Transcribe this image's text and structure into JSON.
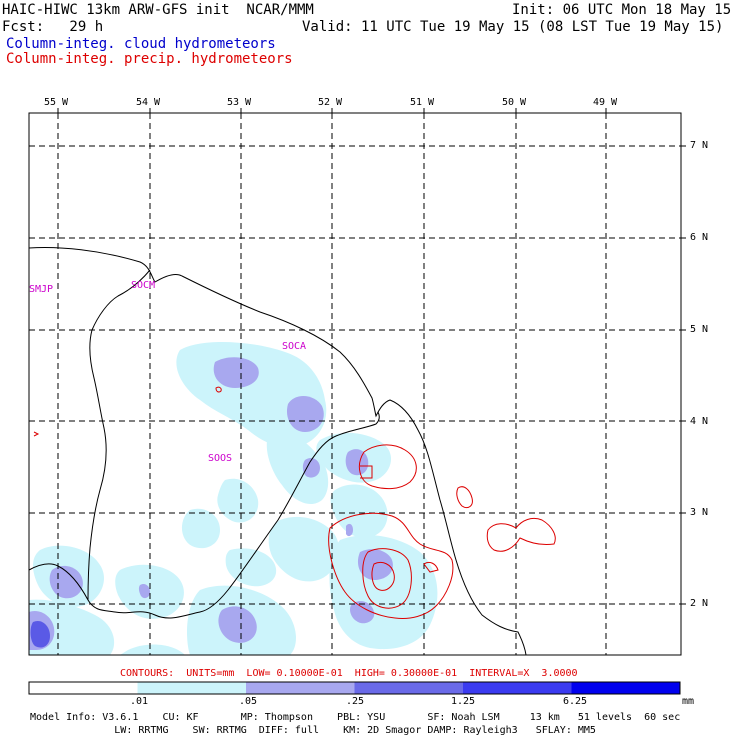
{
  "header": {
    "line1_left": "HAIC-HIWC 13km ARW-GFS init  NCAR/MMM",
    "line1_right": "Init: 06 UTC Mon 18 May 15",
    "line2_left": "Fcst:   29 h",
    "line2_right": "Valid: 11 UTC Tue 19 May 15 (08 LST Tue 19 May 15)",
    "field_cloud": "Column-integ. cloud hydrometeors",
    "field_precip": "Column-integ. precip. hydrometeors",
    "cloud_color": "#0000cc",
    "precip_color": "#dd0000"
  },
  "map": {
    "lon_labels": [
      "55 W",
      "54 W",
      "53 W",
      "52 W",
      "51 W",
      "50 W",
      "49 W"
    ],
    "lat_labels": [
      "7 N",
      "6 N",
      "5 N",
      "4 N",
      "3 N",
      "2 N"
    ],
    "stations": [
      {
        "id": "SMJP"
      },
      {
        "id": "SOCM"
      },
      {
        "id": "SOCA"
      },
      {
        "id": "SOOS"
      }
    ],
    "station_color": "#cc00cc"
  },
  "contour_info": "CONTOURS:  UNITS=mm  LOW= 0.10000E-01  HIGH= 0.30000E-01  INTERVAL=X  3.0000",
  "colorbar": {
    "ticks": [
      ".01",
      ".05",
      ".25",
      "1.25",
      "6.25"
    ],
    "units": "mm",
    "colors": [
      "#ffffff",
      "#ccf4fb",
      "#a8a8ef",
      "#6a6ae8",
      "#3b3bf0",
      "#0000ee"
    ]
  },
  "footer": {
    "line1": "Model Info: V3.6.1    CU: KF       MP: Thompson    PBL: YSU       SF: Noah LSM     13 km   51 levels  60 sec",
    "line2": "              LW: RRTMG    SW: RRTMG  DIFF: full    KM: 2D Smagor DAMP: Rayleigh3   SFLAY: MM5"
  }
}
